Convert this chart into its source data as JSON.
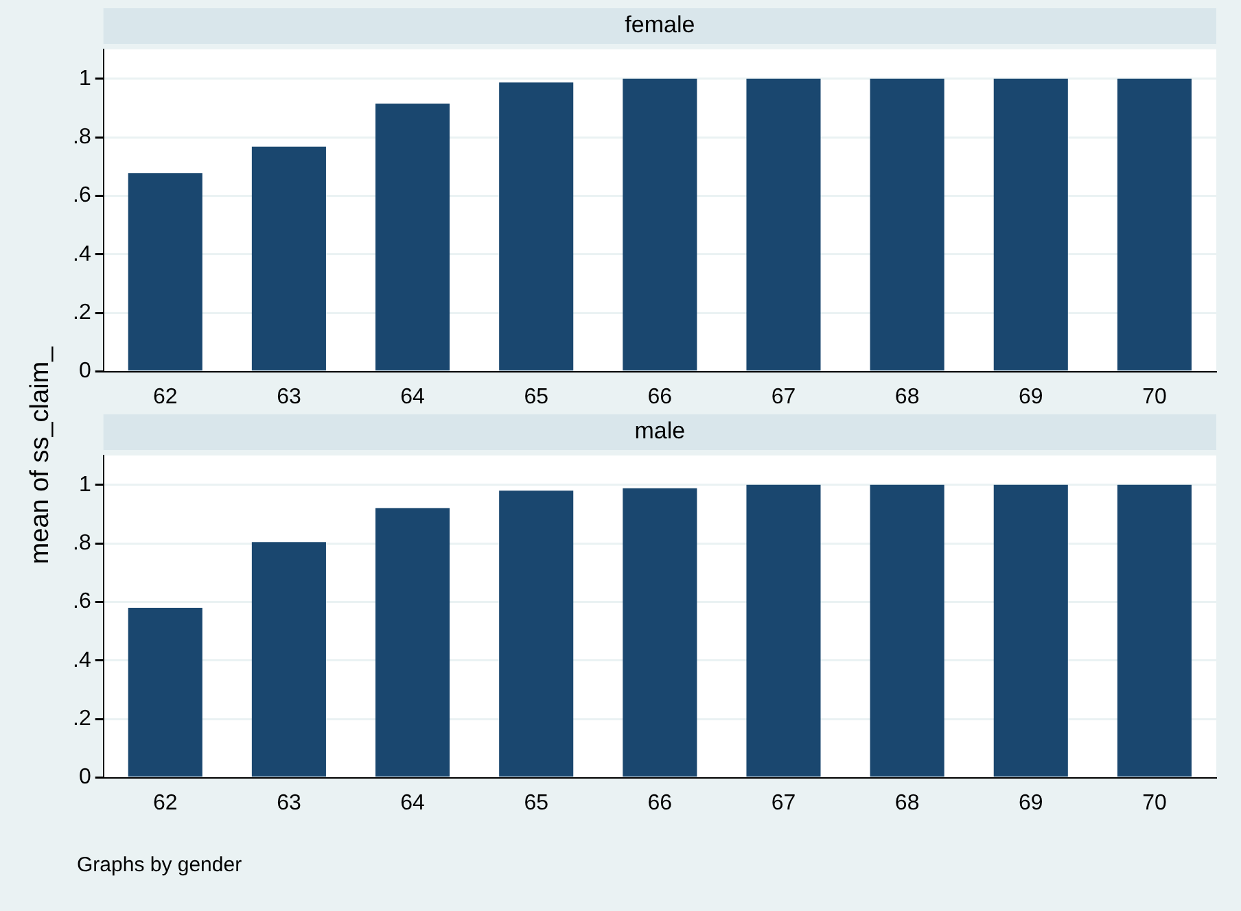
{
  "chart_data": [
    {
      "type": "bar",
      "title": "female",
      "ylabel": "mean of ss_claim_",
      "categories": [
        "62",
        "63",
        "64",
        "65",
        "66",
        "67",
        "68",
        "69",
        "70"
      ],
      "values": [
        0.678,
        0.768,
        0.915,
        0.987,
        1,
        1,
        1,
        1,
        1
      ],
      "color": "#1a476f",
      "ylim": [
        0,
        1.1
      ],
      "yticks": [
        {
          "value": 0,
          "label": "0"
        },
        {
          "value": 0.2,
          "label": ".2"
        },
        {
          "value": 0.4,
          "label": ".4"
        },
        {
          "value": 0.6,
          "label": ".6"
        },
        {
          "value": 0.8,
          "label": ".8"
        },
        {
          "value": 1,
          "label": "1"
        }
      ],
      "grid": "y"
    },
    {
      "type": "bar",
      "title": "male",
      "categories": [
        "62",
        "63",
        "64",
        "65",
        "66",
        "67",
        "68",
        "69",
        "70"
      ],
      "values": [
        0.58,
        0.804,
        0.92,
        0.98,
        0.988,
        1,
        1,
        1,
        1
      ],
      "color": "#1a476f",
      "ylim": [
        0,
        1.1
      ],
      "yticks": [
        {
          "value": 0,
          "label": "0"
        },
        {
          "value": 0.2,
          "label": ".2"
        },
        {
          "value": 0.4,
          "label": ".4"
        },
        {
          "value": 0.6,
          "label": ".6"
        },
        {
          "value": 0.8,
          "label": ".8"
        },
        {
          "value": 1,
          "label": "1"
        }
      ],
      "grid": "y",
      "annotations": [
        "Graphs by gender"
      ]
    }
  ]
}
